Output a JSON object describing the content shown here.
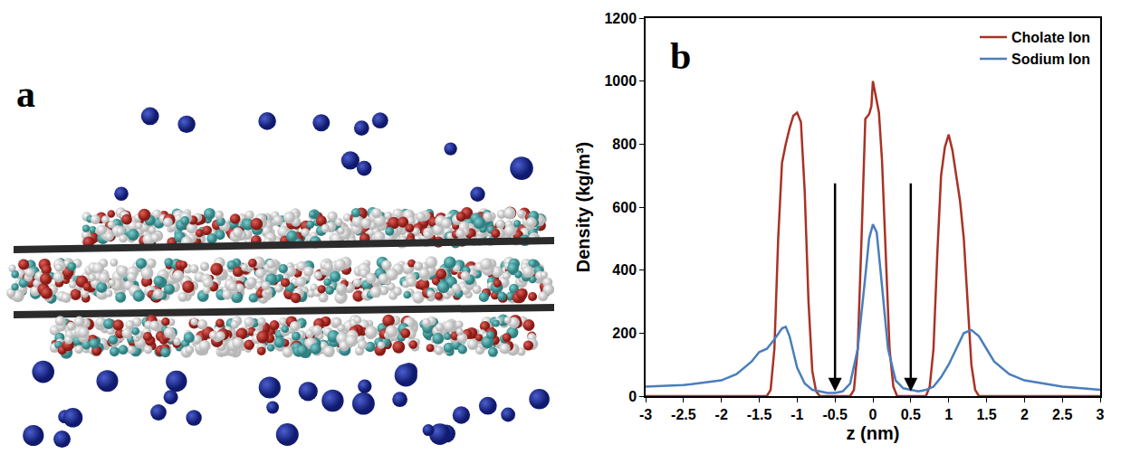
{
  "image_panel": {
    "label": "a"
  },
  "chart_data": {
    "type": "line",
    "label": "b",
    "x_label": "z (nm)",
    "y_label": "Density (kg/m³)",
    "xlim": [
      -3,
      3
    ],
    "xticks": [
      -3,
      -2.5,
      -2,
      -1.5,
      -1,
      -0.5,
      0,
      0.5,
      1,
      1.5,
      2,
      2.5,
      3
    ],
    "ylim": [
      0,
      1200
    ],
    "yticks": [
      0,
      200,
      400,
      600,
      800,
      1000,
      1200
    ],
    "grid": false,
    "legend": "top-right",
    "series": [
      {
        "name": "Cholate Ion",
        "color": "#a93226",
        "x": [
          -3,
          -2,
          -1.5,
          -1.4,
          -1.35,
          -1.3,
          -1.25,
          -1.2,
          -1.15,
          -1.1,
          -1.05,
          -1.0,
          -0.95,
          -0.9,
          -0.85,
          -0.8,
          -0.75,
          -0.7,
          -0.5,
          -0.3,
          -0.25,
          -0.2,
          -0.15,
          -0.1,
          -0.05,
          -0.02,
          0,
          0.03,
          0.08,
          0.12,
          0.17,
          0.22,
          0.27,
          0.32,
          0.5,
          0.7,
          0.75,
          0.8,
          0.85,
          0.9,
          0.95,
          1.0,
          1.05,
          1.1,
          1.15,
          1.2,
          1.25,
          1.3,
          1.35,
          1.4,
          2,
          3
        ],
        "values": [
          0,
          0,
          0,
          0,
          20,
          150,
          500,
          740,
          800,
          850,
          890,
          900,
          870,
          650,
          300,
          80,
          15,
          0,
          0,
          0,
          20,
          150,
          500,
          880,
          895,
          920,
          1000,
          960,
          900,
          750,
          450,
          150,
          30,
          0,
          0,
          0,
          30,
          150,
          450,
          700,
          790,
          830,
          780,
          700,
          620,
          500,
          300,
          100,
          20,
          0,
          0,
          0
        ]
      },
      {
        "name": "Sodium Ion",
        "color": "#4a7ebb",
        "x": [
          -3,
          -2.5,
          -2,
          -1.8,
          -1.6,
          -1.5,
          -1.4,
          -1.3,
          -1.2,
          -1.15,
          -1.1,
          -1.05,
          -1.0,
          -0.9,
          -0.8,
          -0.7,
          -0.6,
          -0.5,
          -0.4,
          -0.3,
          -0.2,
          -0.1,
          -0.05,
          0,
          0.05,
          0.1,
          0.2,
          0.3,
          0.4,
          0.5,
          0.6,
          0.7,
          0.8,
          0.9,
          1.0,
          1.1,
          1.2,
          1.3,
          1.4,
          1.5,
          1.6,
          1.8,
          2,
          2.5,
          3
        ],
        "values": [
          30,
          35,
          50,
          70,
          110,
          140,
          150,
          180,
          215,
          220,
          190,
          140,
          90,
          40,
          20,
          15,
          10,
          10,
          15,
          40,
          150,
          380,
          500,
          545,
          520,
          400,
          150,
          50,
          25,
          20,
          15,
          20,
          30,
          60,
          100,
          150,
          200,
          210,
          190,
          150,
          110,
          70,
          50,
          30,
          20
        ]
      }
    ],
    "arrows": [
      {
        "x": -0.5,
        "y_start": 680,
        "y_end": 15
      },
      {
        "x": 0.5,
        "y_start": 680,
        "y_end": 15
      }
    ]
  }
}
